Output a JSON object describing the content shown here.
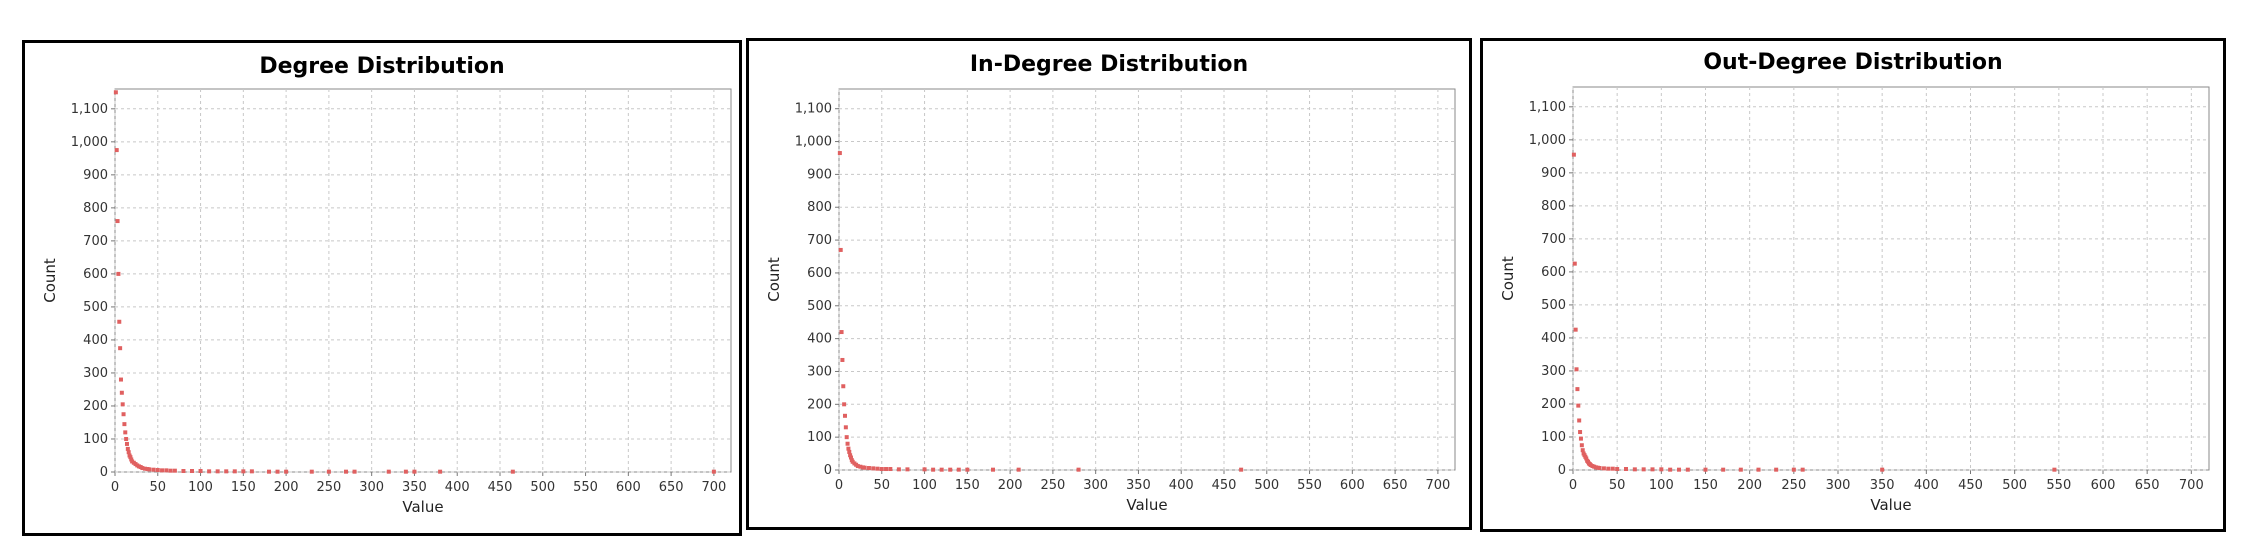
{
  "colors": {
    "point": "#e06060"
  },
  "chart_data": [
    {
      "type": "scatter",
      "title": "Degree Distribution",
      "xlabel": "Value",
      "ylabel": "Count",
      "xlim": [
        0,
        720
      ],
      "ylim": [
        0,
        1160
      ],
      "xticks": [
        0,
        50,
        100,
        150,
        200,
        250,
        300,
        350,
        400,
        450,
        500,
        550,
        600,
        650,
        700
      ],
      "yticks": [
        0,
        100,
        200,
        300,
        400,
        500,
        600,
        700,
        800,
        900,
        1000,
        1100
      ],
      "grid": true,
      "x": [
        1,
        2,
        3,
        4,
        5,
        6,
        7,
        8,
        9,
        10,
        11,
        12,
        13,
        14,
        15,
        16,
        17,
        18,
        19,
        20,
        22,
        24,
        26,
        28,
        30,
        32,
        35,
        38,
        40,
        45,
        50,
        55,
        60,
        65,
        70,
        80,
        90,
        100,
        110,
        120,
        130,
        140,
        150,
        160,
        180,
        190,
        200,
        230,
        250,
        270,
        280,
        320,
        340,
        350,
        380,
        465,
        700
      ],
      "y": [
        1150,
        975,
        760,
        600,
        455,
        375,
        280,
        240,
        205,
        175,
        145,
        120,
        100,
        85,
        70,
        60,
        50,
        45,
        38,
        32,
        28,
        24,
        20,
        17,
        15,
        12,
        10,
        9,
        8,
        7,
        6,
        5,
        5,
        4,
        4,
        3,
        3,
        3,
        2,
        2,
        2,
        2,
        2,
        2,
        1,
        1,
        1,
        1,
        1,
        1,
        1,
        1,
        1,
        1,
        1,
        1,
        1
      ]
    },
    {
      "type": "scatter",
      "title": "In-Degree Distribution",
      "xlabel": "Value",
      "ylabel": "Count",
      "xlim": [
        0,
        720
      ],
      "ylim": [
        0,
        1160
      ],
      "xticks": [
        0,
        50,
        100,
        150,
        200,
        250,
        300,
        350,
        400,
        450,
        500,
        550,
        600,
        650,
        700
      ],
      "yticks": [
        0,
        100,
        200,
        300,
        400,
        500,
        600,
        700,
        800,
        900,
        1000,
        1100
      ],
      "grid": true,
      "x": [
        1,
        2,
        3,
        4,
        5,
        6,
        7,
        8,
        9,
        10,
        11,
        12,
        13,
        14,
        15,
        16,
        18,
        20,
        22,
        25,
        28,
        30,
        35,
        40,
        45,
        50,
        55,
        60,
        70,
        80,
        100,
        110,
        120,
        130,
        140,
        150,
        180,
        210,
        280,
        470
      ],
      "y": [
        965,
        670,
        420,
        335,
        255,
        200,
        165,
        130,
        100,
        80,
        65,
        55,
        45,
        38,
        30,
        25,
        20,
        16,
        12,
        10,
        8,
        7,
        6,
        5,
        4,
        3,
        3,
        3,
        2,
        2,
        2,
        1,
        1,
        1,
        1,
        1,
        1,
        1,
        1,
        1
      ]
    },
    {
      "type": "scatter",
      "title": "Out-Degree Distribution",
      "xlabel": "Value",
      "ylabel": "Count",
      "xlim": [
        0,
        720
      ],
      "ylim": [
        0,
        1160
      ],
      "xticks": [
        0,
        50,
        100,
        150,
        200,
        250,
        300,
        350,
        400,
        450,
        500,
        550,
        600,
        650,
        700
      ],
      "yticks": [
        0,
        100,
        200,
        300,
        400,
        500,
        600,
        700,
        800,
        900,
        1000,
        1100
      ],
      "grid": true,
      "x": [
        1,
        2,
        3,
        4,
        5,
        6,
        7,
        8,
        9,
        10,
        11,
        12,
        13,
        14,
        15,
        16,
        17,
        18,
        19,
        20,
        22,
        24,
        26,
        28,
        30,
        35,
        40,
        45,
        50,
        60,
        70,
        80,
        90,
        100,
        110,
        120,
        130,
        150,
        170,
        190,
        210,
        230,
        250,
        260,
        350,
        545
      ],
      "y": [
        955,
        625,
        425,
        305,
        245,
        195,
        150,
        115,
        95,
        75,
        60,
        50,
        45,
        40,
        35,
        28,
        25,
        20,
        18,
        15,
        12,
        10,
        8,
        7,
        6,
        5,
        4,
        4,
        3,
        3,
        2,
        2,
        2,
        2,
        1,
        1,
        1,
        1,
        1,
        1,
        1,
        1,
        1,
        1,
        1,
        1
      ]
    }
  ]
}
